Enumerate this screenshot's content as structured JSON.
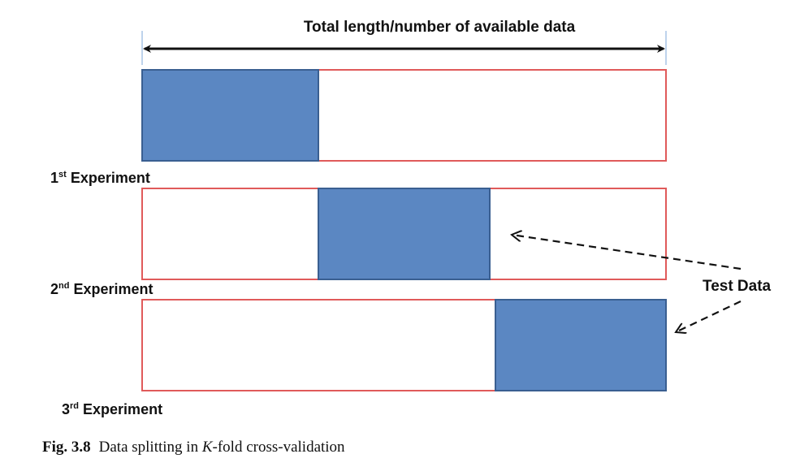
{
  "diagram": {
    "top_label": "Total length/number  of available data",
    "right_label": "Test Data",
    "colors": {
      "test_fill": "#5b87c2",
      "test_stroke": "#3a5f91",
      "box_stroke": "#e05a5a",
      "arrow": "#111111"
    },
    "experiments": [
      {
        "ordinal": "1",
        "suffix": "st",
        "label": "Experiment"
      },
      {
        "ordinal": "2",
        "suffix": "nd",
        "label": "Experiment"
      },
      {
        "ordinal": "3",
        "suffix": "rd",
        "label": "Experiment"
      }
    ]
  },
  "caption": {
    "number": "Fig. 3.8",
    "text_before": "Data splitting in ",
    "italic": "K",
    "text_after": "-fold cross-validation"
  }
}
